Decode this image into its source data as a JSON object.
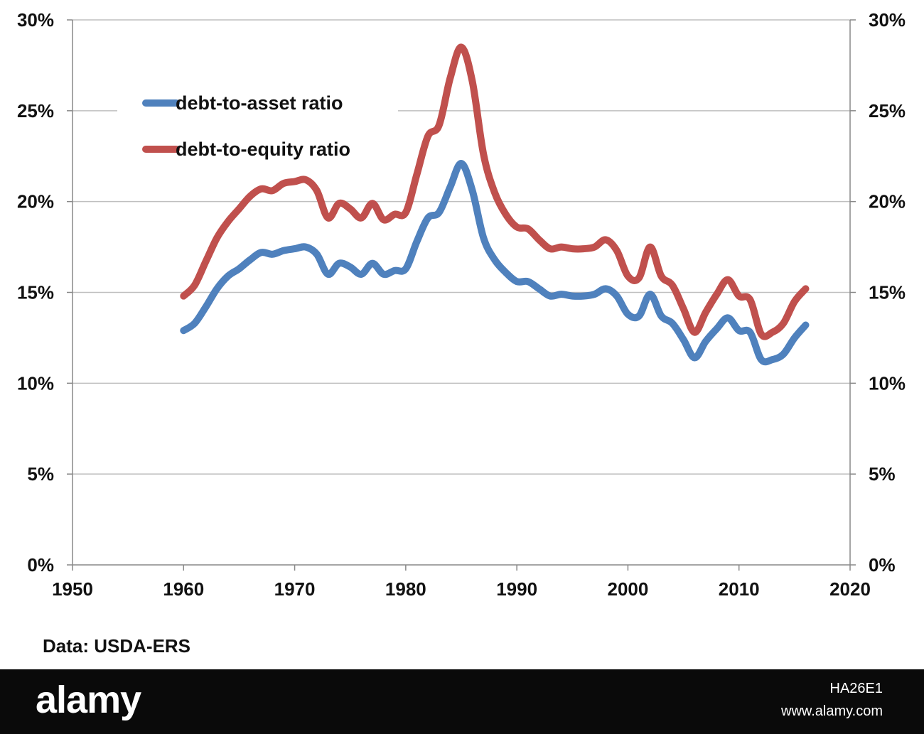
{
  "chart_data": {
    "type": "line",
    "xlabel": "",
    "ylabel": "",
    "xlim": [
      1950,
      2020
    ],
    "ylim": [
      0,
      30
    ],
    "x_ticks": [
      "1950",
      "1960",
      "1970",
      "1980",
      "1990",
      "2000",
      "2010",
      "2020"
    ],
    "y_ticks_left": [
      "0%",
      "5%",
      "10%",
      "15%",
      "20%",
      "25%",
      "30%"
    ],
    "y_ticks_right": [
      "0%",
      "5%",
      "10%",
      "15%",
      "20%",
      "25%",
      "30%"
    ],
    "grid": "horizontal",
    "legend_position": "top-left",
    "series": [
      {
        "name": "debt-to-asset ratio",
        "color": "#4f81bd",
        "x": [
          1960,
          1961,
          1962,
          1963,
          1964,
          1965,
          1966,
          1967,
          1968,
          1969,
          1970,
          1971,
          1972,
          1973,
          1974,
          1975,
          1976,
          1977,
          1978,
          1979,
          1980,
          1981,
          1982,
          1983,
          1984,
          1985,
          1986,
          1987,
          1988,
          1989,
          1990,
          1991,
          1992,
          1993,
          1994,
          1995,
          1996,
          1997,
          1998,
          1999,
          2000,
          2001,
          2002,
          2003,
          2004,
          2005,
          2006,
          2007,
          2008,
          2009,
          2010,
          2011,
          2012,
          2013,
          2014,
          2015,
          2016
        ],
        "values": [
          12.9,
          13.3,
          14.2,
          15.2,
          15.9,
          16.3,
          16.8,
          17.2,
          17.1,
          17.3,
          17.4,
          17.5,
          17.1,
          16.0,
          16.6,
          16.4,
          16.0,
          16.6,
          16.0,
          16.2,
          16.3,
          17.8,
          19.1,
          19.4,
          20.8,
          22.1,
          20.6,
          18.0,
          16.8,
          16.1,
          15.6,
          15.6,
          15.2,
          14.8,
          14.9,
          14.8,
          14.8,
          14.9,
          15.2,
          14.8,
          13.8,
          13.7,
          14.9,
          13.7,
          13.3,
          12.4,
          11.4,
          12.3,
          13.0,
          13.6,
          12.9,
          12.8,
          11.3,
          11.3,
          11.6,
          12.5,
          13.2
        ]
      },
      {
        "name": "debt-to-equity ratio",
        "color": "#c0504d",
        "x": [
          1960,
          1961,
          1962,
          1963,
          1964,
          1965,
          1966,
          1967,
          1968,
          1969,
          1970,
          1971,
          1972,
          1973,
          1974,
          1975,
          1976,
          1977,
          1978,
          1979,
          1980,
          1981,
          1982,
          1983,
          1984,
          1985,
          1986,
          1987,
          1988,
          1989,
          1990,
          1991,
          1992,
          1993,
          1994,
          1995,
          1996,
          1997,
          1998,
          1999,
          2000,
          2001,
          2002,
          2003,
          2004,
          2005,
          2006,
          2007,
          2008,
          2009,
          2010,
          2011,
          2012,
          2013,
          2014,
          2015,
          2016
        ],
        "values": [
          14.8,
          15.4,
          16.7,
          18.0,
          18.9,
          19.6,
          20.3,
          20.7,
          20.6,
          21.0,
          21.1,
          21.2,
          20.6,
          19.1,
          19.9,
          19.6,
          19.1,
          19.9,
          19.0,
          19.3,
          19.4,
          21.5,
          23.6,
          24.2,
          26.8,
          28.5,
          26.6,
          22.6,
          20.5,
          19.3,
          18.6,
          18.5,
          17.9,
          17.4,
          17.5,
          17.4,
          17.4,
          17.5,
          17.9,
          17.3,
          15.9,
          15.8,
          17.5,
          15.9,
          15.4,
          14.1,
          12.8,
          13.9,
          14.9,
          15.7,
          14.8,
          14.6,
          12.7,
          12.8,
          13.3,
          14.5,
          15.2
        ]
      }
    ]
  },
  "source_text": "Data: USDA-ERS",
  "watermark": {
    "logo": "alamy",
    "image_id": "HA26E1",
    "url": "www.alamy.com"
  }
}
